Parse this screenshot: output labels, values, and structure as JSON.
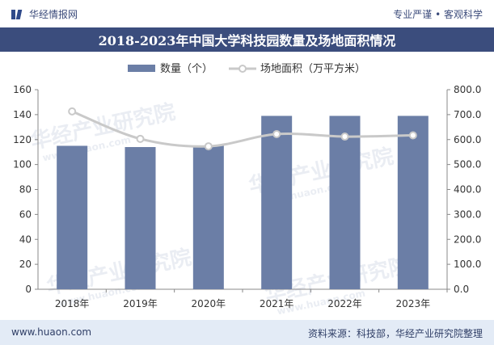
{
  "header": {
    "brand_name": "华经情报网",
    "slogan": "专业严谨 • 客观科学"
  },
  "title": "2018-2023年中国大学科技园数量及场地面积情况",
  "footer": {
    "url": "www.huaon.com",
    "source": "资料来源：科技部，华经产业研究院整理"
  },
  "watermark": {
    "text": "华经产业研究院",
    "url": "www.huaon.com"
  },
  "colors": {
    "bar": "#6b7ea6",
    "line": "#c9c9c9",
    "title_bg": "#3b4d7d",
    "footer_bg": "#e3ebf6"
  },
  "chart_data": {
    "type": "bar",
    "categories": [
      "2018年",
      "2019年",
      "2020年",
      "2021年",
      "2022年",
      "2023年"
    ],
    "series": [
      {
        "name": "数量（个）",
        "type": "bar",
        "axis": "left",
        "values": [
          115,
          114,
          115,
          139,
          139,
          139
        ]
      },
      {
        "name": "场地面积（万平方米）",
        "type": "line",
        "axis": "right",
        "values": [
          713,
          603,
          573,
          622,
          612,
          617
        ]
      }
    ],
    "y_left": {
      "min": 0,
      "max": 160,
      "ticks": [
        "0",
        "20",
        "40",
        "60",
        "80",
        "100",
        "120",
        "140",
        "160"
      ]
    },
    "y_right": {
      "min": 0,
      "max": 800,
      "ticks": [
        "0.0",
        "100.0",
        "200.0",
        "300.0",
        "400.0",
        "500.0",
        "600.0",
        "700.0",
        "800.0"
      ]
    },
    "legend_position": "top-center",
    "grid": false
  }
}
